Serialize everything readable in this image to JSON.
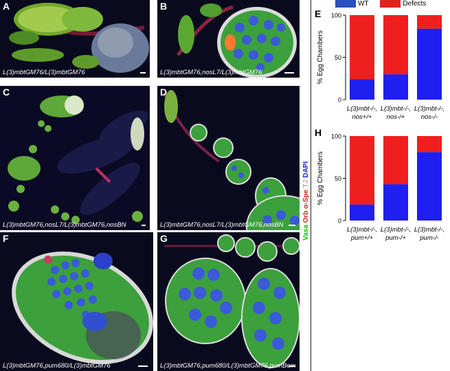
{
  "panels": [
    {
      "label": "A",
      "caption": "L(3)mbtGM76/L(3)mbtGM76"
    },
    {
      "label": "B",
      "caption": "L(3)mbtGM76,nosL7/L(3)mbtGM76"
    },
    {
      "label": "C",
      "caption": "L(3)mbtGM76,nosL7/L(3)mbtGM76,nosBN"
    },
    {
      "label": "D",
      "caption": "L(3)mbtGM76,nosL7/L(3)mbtGM76,nosBN"
    },
    {
      "label": "F",
      "caption": "L(3)mbtGM76,pum680/L(3)mbtGM76"
    },
    {
      "label": "G",
      "caption": "L(3)mbtGM76,pum680/L(3)mbtGM76,pumBem"
    }
  ],
  "stain_legend": {
    "vasa": "Vasa",
    "orb": "Orb",
    "spe": "α-Spe",
    "tj": "TJ",
    "dapi": "DAPI",
    "colors": {
      "vasa": "#00c000",
      "orb": "#e02020",
      "spe": "#e02020",
      "tj": "#bbbbbb",
      "dapi": "#2020e0"
    }
  },
  "chart_legend": {
    "wt": "WT",
    "defects": "Defects",
    "wt_color": "#2b4fbf",
    "defects_color": "#e3211b"
  },
  "chart_data": [
    {
      "panel": "E",
      "type": "bar",
      "stacked": true,
      "ylabel": "% Egg Chambers",
      "ylim": [
        0,
        100
      ],
      "yticks": [
        0,
        50,
        100
      ],
      "categories": [
        [
          "L(3)mbt-/-,",
          "nos+/+"
        ],
        [
          "L(3)mbt-/-,",
          "nos-/+"
        ],
        [
          "L(3)mbt-/-,",
          "nos-/-"
        ]
      ],
      "series": [
        {
          "name": "WT",
          "color": "#1f1ff0",
          "values": [
            24,
            30,
            84
          ]
        },
        {
          "name": "Defects",
          "color": "#f01f1f",
          "values": [
            76,
            70,
            16
          ]
        }
      ]
    },
    {
      "panel": "H",
      "type": "bar",
      "stacked": true,
      "ylabel": "% Egg Chambers",
      "ylim": [
        0,
        100
      ],
      "yticks": [
        0,
        50,
        100
      ],
      "categories": [
        [
          "L(3)mbt-/-,",
          "pum+/+"
        ],
        [
          "L(3)mbt-/-,",
          "pum-/+"
        ],
        [
          "L(3)mbt-/-,",
          "pum-/-"
        ]
      ],
      "series": [
        {
          "name": "WT",
          "color": "#1f1ff0",
          "values": [
            19,
            43,
            81
          ]
        },
        {
          "name": "Defects",
          "color": "#f01f1f",
          "values": [
            81,
            57,
            19
          ]
        }
      ]
    }
  ]
}
